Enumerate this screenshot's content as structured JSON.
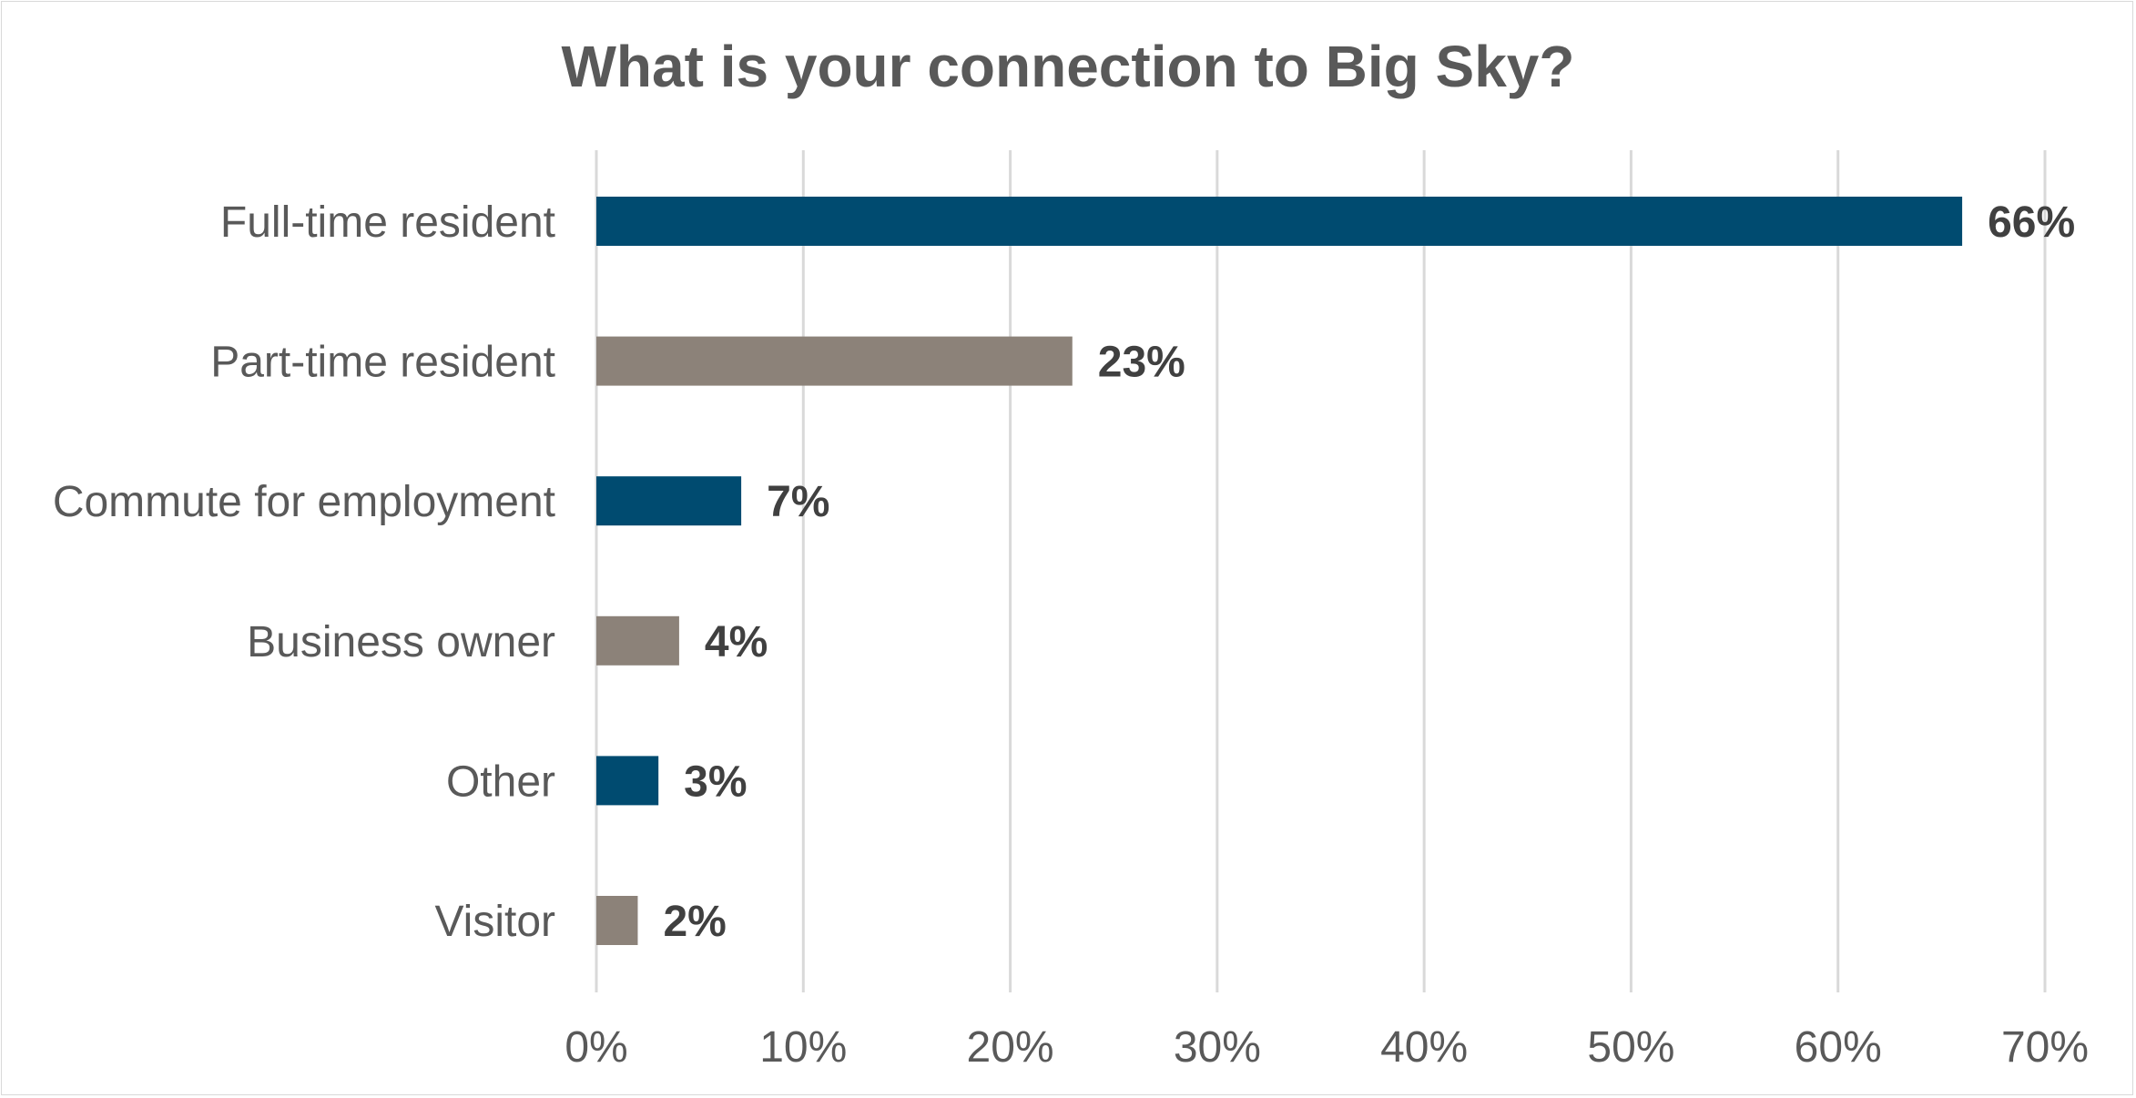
{
  "chart_data": {
    "type": "bar",
    "orientation": "horizontal",
    "title": "What is your connection to Big Sky?",
    "categories": [
      "Full-time resident",
      "Part-time resident",
      "Commute for employment",
      "Business owner",
      "Other",
      "Visitor"
    ],
    "values": [
      66,
      23,
      7,
      4,
      3,
      2
    ],
    "data_labels": [
      "66%",
      "23%",
      "7%",
      "4%",
      "3%",
      "2%"
    ],
    "bar_colors": [
      "#004b70",
      "#8c8279",
      "#004b70",
      "#8c8279",
      "#004b70",
      "#8c8279"
    ],
    "x_ticks": [
      0,
      10,
      20,
      30,
      40,
      50,
      60,
      70
    ],
    "x_tick_labels": [
      "0%",
      "10%",
      "20%",
      "30%",
      "40%",
      "50%",
      "60%",
      "70%"
    ],
    "xlim": [
      0,
      70
    ],
    "xlabel": "",
    "ylabel": "",
    "grid": "vertical",
    "legend": "none"
  }
}
